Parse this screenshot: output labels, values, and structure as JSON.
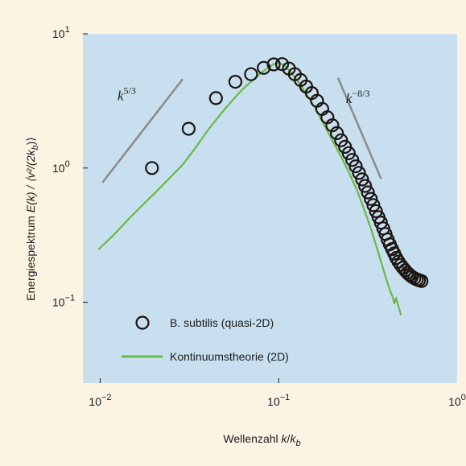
{
  "chart_data": {
    "type": "scatter",
    "xscale": "log",
    "yscale": "log",
    "xlim": [
      0.008,
      1.0
    ],
    "ylim": [
      0.025,
      10
    ],
    "xlabel": {
      "prefix": "Wellenzahl ",
      "var": "k",
      "sep": "/",
      "var2": "k",
      "sub2": "b"
    },
    "ylabel": {
      "prefix": "Energiespektrum ",
      "main": "E(k) / ⟨v²/(2k",
      "sub": "b",
      "close": ")⟩"
    },
    "x_ticks": [
      {
        "value": 0.01,
        "base": "10",
        "exp": "−2"
      },
      {
        "value": 0.1,
        "base": "10",
        "exp": "−1"
      },
      {
        "value": 1,
        "base": "10",
        "exp": "0"
      }
    ],
    "y_ticks": [
      {
        "value": 0.1,
        "base": "10",
        "exp": "−1"
      },
      {
        "value": 1,
        "base": "10",
        "exp": "0"
      },
      {
        "value": 10,
        "base": "10",
        "exp": "1"
      }
    ],
    "grid": false,
    "legend_position": "bottom-left",
    "colors": {
      "background": "#fdf3e3",
      "plot_area": "#c8dff0",
      "marker_stroke": "#1c1410",
      "line": "#6ab945",
      "slope_line": "#8a8a8a"
    },
    "series": [
      {
        "name": "B. subtilis (quasi-2D)",
        "kind": "scatter",
        "x": [
          0.0195,
          0.0313,
          0.0445,
          0.0572,
          0.07,
          0.0825,
          0.0938,
          0.1045,
          0.1142,
          0.1232,
          0.1327,
          0.1425,
          0.1533,
          0.164,
          0.1754,
          0.1876,
          0.1997,
          0.212,
          0.2238,
          0.2353,
          0.2469,
          0.2585,
          0.2703,
          0.2818,
          0.2935,
          0.3049,
          0.3162,
          0.3281,
          0.3392,
          0.3507,
          0.3627,
          0.374,
          0.3854,
          0.3968,
          0.4081,
          0.4198,
          0.4322,
          0.4442,
          0.4561,
          0.4689,
          0.4827,
          0.4964,
          0.5114,
          0.5261,
          0.5411,
          0.5577,
          0.5757,
          0.5941,
          0.6118,
          0.631
        ],
        "y": [
          1.0,
          1.96,
          3.32,
          4.39,
          5.0,
          5.58,
          5.92,
          5.94,
          5.51,
          5.0,
          4.53,
          4.05,
          3.62,
          3.17,
          2.76,
          2.39,
          2.08,
          1.82,
          1.61,
          1.44,
          1.29,
          1.15,
          1.03,
          0.92,
          0.823,
          0.736,
          0.659,
          0.589,
          0.53,
          0.477,
          0.431,
          0.392,
          0.355,
          0.323,
          0.294,
          0.27,
          0.249,
          0.231,
          0.214,
          0.201,
          0.19,
          0.181,
          0.173,
          0.166,
          0.16,
          0.155,
          0.151,
          0.148,
          0.146,
          0.144
        ]
      },
      {
        "name": "Kontinuumstheorie (2D)",
        "kind": "line",
        "x": [
          0.0098,
          0.012,
          0.0145,
          0.017,
          0.02,
          0.024,
          0.029,
          0.034,
          0.04,
          0.047,
          0.054,
          0.062,
          0.07,
          0.078,
          0.086,
          0.093,
          0.1,
          0.108,
          0.118,
          0.13,
          0.144,
          0.16,
          0.178,
          0.2,
          0.225,
          0.25,
          0.275,
          0.3,
          0.325,
          0.35,
          0.375,
          0.4,
          0.42,
          0.435,
          0.445,
          0.455,
          0.465,
          0.475,
          0.485
        ],
        "y": [
          0.248,
          0.32,
          0.42,
          0.52,
          0.64,
          0.82,
          1.06,
          1.4,
          1.9,
          2.5,
          3.1,
          3.8,
          4.4,
          5.0,
          5.5,
          5.9,
          6.1,
          5.8,
          5.1,
          4.3,
          3.5,
          2.8,
          2.15,
          1.6,
          1.2,
          0.9,
          0.68,
          0.5,
          0.37,
          0.27,
          0.2,
          0.15,
          0.123,
          0.11,
          0.098,
          0.108,
          0.096,
          0.088,
          0.08
        ]
      }
    ],
    "reference_lines": [
      {
        "label_base": "k",
        "label_exp": "5/3",
        "x": [
          0.0103,
          0.029
        ],
        "y": [
          0.78,
          4.6
        ]
      },
      {
        "label_base": "k",
        "label_exp": "−8/3",
        "x": [
          0.215,
          0.375
        ],
        "y": [
          4.7,
          0.83
        ]
      }
    ]
  }
}
